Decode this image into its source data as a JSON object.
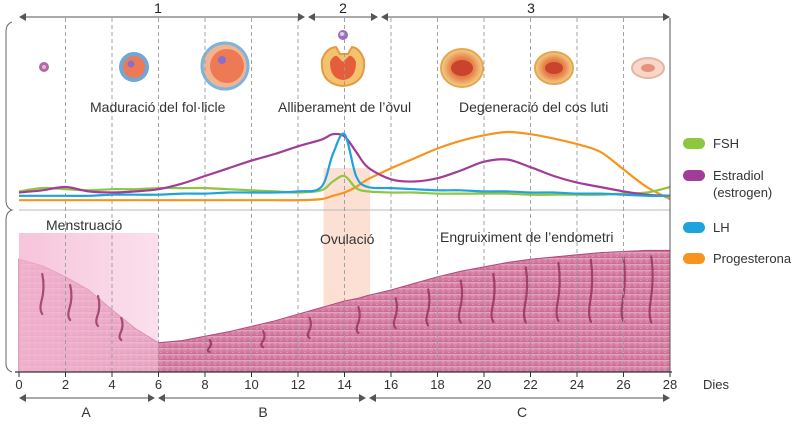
{
  "phases": [
    {
      "number": "1"
    },
    {
      "number": "2"
    },
    {
      "number": "3"
    }
  ],
  "stage_labels": {
    "follicle": "Maduració del fol·licle",
    "ovule": "Alliberament de l’òvul",
    "corpus": "Degeneració del cos luti"
  },
  "endometrium_labels": {
    "menstruation": "Menstruació",
    "ovulation": "Ovulació",
    "thickening": "Engruiximent de l’endometri"
  },
  "legend": [
    {
      "key": "fsh",
      "label": "FSH",
      "color": "#8dc63f"
    },
    {
      "key": "estradiol",
      "label": "Estradiol (estrogen)",
      "color": "#a23c9a"
    },
    {
      "key": "lh",
      "label": "LH",
      "color": "#1ea3dc"
    },
    {
      "key": "progesterone",
      "label": "Progesterona",
      "color": "#f7941d"
    }
  ],
  "x_axis": {
    "ticks": [
      "0",
      "2",
      "4",
      "6",
      "8",
      "10",
      "12",
      "14",
      "16",
      "18",
      "20",
      "22",
      "24",
      "26",
      "28"
    ],
    "unit_label": "Dies"
  },
  "periods": [
    {
      "letter": "A"
    },
    {
      "letter": "B"
    },
    {
      "letter": "C"
    }
  ],
  "chart_data": {
    "type": "line",
    "x": [
      0,
      1,
      2,
      3,
      4,
      5,
      6,
      7,
      8,
      9,
      10,
      11,
      12,
      13,
      13.5,
      14,
      14.5,
      15,
      16,
      17,
      18,
      19,
      20,
      21,
      22,
      23,
      24,
      25,
      26,
      27,
      28
    ],
    "series": [
      {
        "name": "FSH",
        "values": [
          0.06,
          0.09,
          0.08,
          0.07,
          0.08,
          0.08,
          0.09,
          0.09,
          0.09,
          0.08,
          0.07,
          0.06,
          0.05,
          0.07,
          0.15,
          0.2,
          0.09,
          0.06,
          0.05,
          0.05,
          0.04,
          0.04,
          0.04,
          0.04,
          0.03,
          0.03,
          0.03,
          0.03,
          0.04,
          0.05,
          0.1
        ]
      },
      {
        "name": "Estradiol (estrogen)",
        "values": [
          0.05,
          0.07,
          0.1,
          0.06,
          0.05,
          0.06,
          0.08,
          0.13,
          0.2,
          0.27,
          0.34,
          0.4,
          0.47,
          0.53,
          0.58,
          0.56,
          0.42,
          0.28,
          0.17,
          0.15,
          0.18,
          0.25,
          0.33,
          0.35,
          0.28,
          0.2,
          0.14,
          0.1,
          0.06,
          0.03,
          0.02
        ]
      },
      {
        "name": "LH",
        "values": [
          0.02,
          0.02,
          0.02,
          0.02,
          0.03,
          0.03,
          0.03,
          0.04,
          0.04,
          0.05,
          0.05,
          0.05,
          0.06,
          0.1,
          0.4,
          0.58,
          0.2,
          0.1,
          0.09,
          0.08,
          0.07,
          0.07,
          0.06,
          0.06,
          0.05,
          0.05,
          0.04,
          0.04,
          0.03,
          0.02,
          0.02
        ]
      },
      {
        "name": "Progesterona",
        "values": [
          -0.02,
          -0.02,
          -0.02,
          -0.02,
          -0.02,
          -0.02,
          -0.02,
          -0.02,
          -0.02,
          -0.02,
          -0.02,
          -0.02,
          -0.02,
          -0.01,
          0.02,
          0.05,
          0.1,
          0.17,
          0.27,
          0.36,
          0.45,
          0.52,
          0.57,
          0.6,
          0.58,
          0.54,
          0.49,
          0.42,
          0.26,
          0.1,
          -0.01
        ]
      }
    ],
    "endometrium_thickness": [
      0.88,
      0.82,
      0.72,
      0.6,
      0.42,
      0.25,
      0.12,
      0.14,
      0.18,
      0.22,
      0.27,
      0.32,
      0.38,
      0.44,
      0.47,
      0.5,
      0.52,
      0.55,
      0.6,
      0.66,
      0.72,
      0.77,
      0.81,
      0.85,
      0.88,
      0.9,
      0.92,
      0.94,
      0.95,
      0.96,
      0.96
    ],
    "xlabel": "Dies",
    "xlim": [
      0,
      28
    ]
  }
}
